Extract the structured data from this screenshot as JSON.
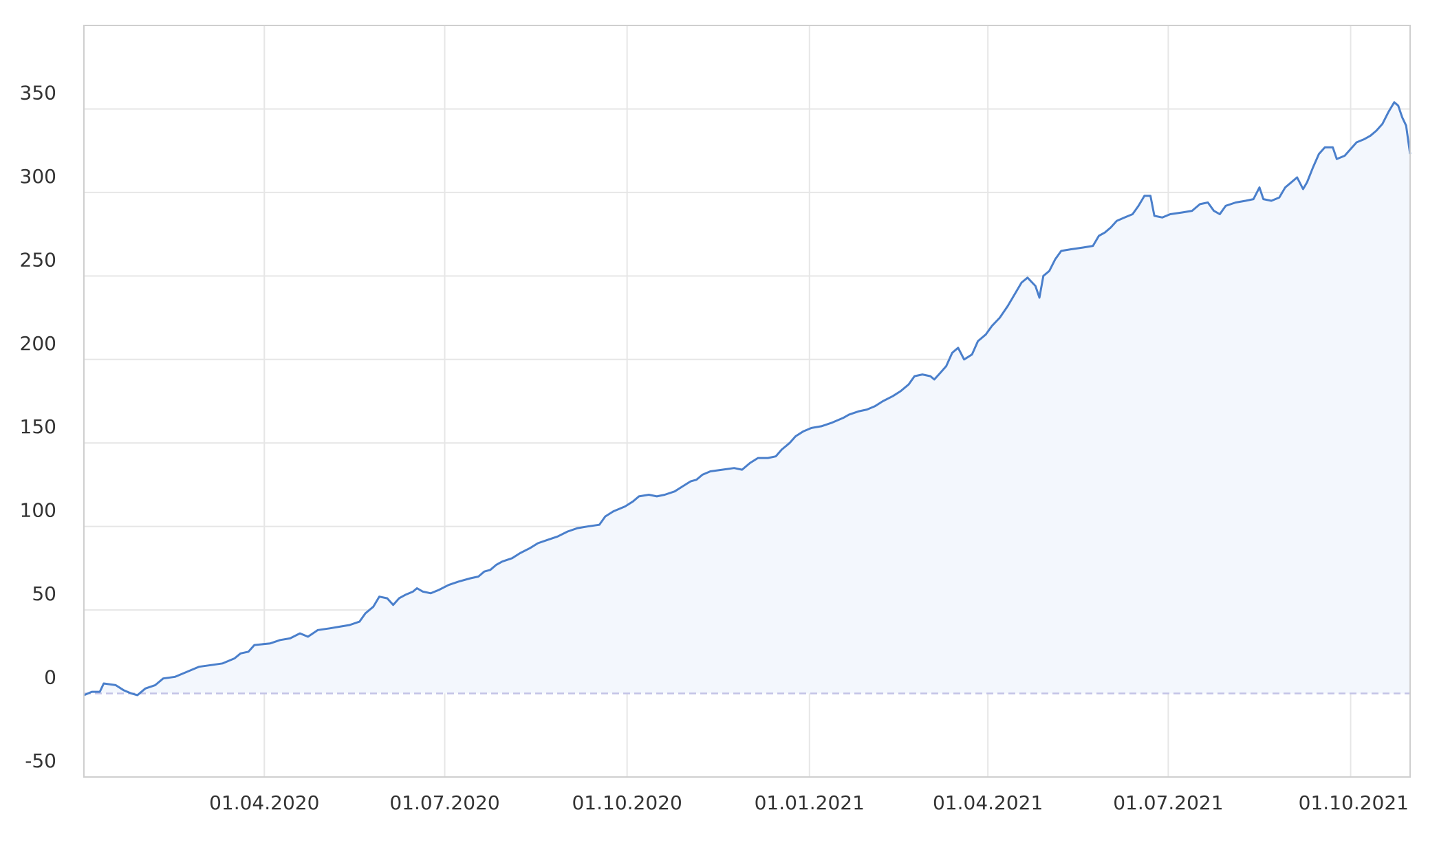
{
  "colors": {
    "line": "#4a7fcb",
    "area": "#f3f7fd",
    "grid": "#e6e6e6",
    "frame": "#cfcfcf",
    "zero_line": "#c3c3e6",
    "tick_text": "#333333"
  },
  "chart_data": {
    "type": "area",
    "title": "",
    "xlabel": "",
    "ylabel": "",
    "x_range": [
      "2020-01-01",
      "2021-10-31"
    ],
    "ylim": [
      -50,
      400
    ],
    "grid": true,
    "zero_baseline": "dashed",
    "y_ticks": [
      -50,
      0,
      50,
      100,
      150,
      200,
      250,
      300,
      350
    ],
    "y_tick_labels": [
      "-50",
      "0",
      "50",
      "100",
      "150",
      "200",
      "250",
      "300",
      "350"
    ],
    "x_ticks": [
      "2020-04-01",
      "2020-07-01",
      "2020-10-01",
      "2021-01-01",
      "2021-04-01",
      "2021-07-01",
      "2021-10-01"
    ],
    "x_tick_labels": [
      "01.04.2020",
      "01.07.2020",
      "01.10.2020",
      "01.01.2021",
      "01.04.2021",
      "01.07.2021",
      "01.10.2021"
    ],
    "series": [
      {
        "points": [
          [
            "2020-01-01",
            -1
          ],
          [
            "2020-01-05",
            1
          ],
          [
            "2020-01-09",
            1
          ],
          [
            "2020-01-11",
            6
          ],
          [
            "2020-01-17",
            5
          ],
          [
            "2020-01-21",
            2
          ],
          [
            "2020-01-25",
            0
          ],
          [
            "2020-01-28",
            -1
          ],
          [
            "2020-02-01",
            3
          ],
          [
            "2020-02-06",
            5
          ],
          [
            "2020-02-10",
            9
          ],
          [
            "2020-02-16",
            10
          ],
          [
            "2020-02-22",
            13
          ],
          [
            "2020-02-28",
            16
          ],
          [
            "2020-03-05",
            17
          ],
          [
            "2020-03-11",
            18
          ],
          [
            "2020-03-17",
            21
          ],
          [
            "2020-03-20",
            24
          ],
          [
            "2020-03-24",
            25
          ],
          [
            "2020-03-27",
            29
          ],
          [
            "2020-04-04",
            30
          ],
          [
            "2020-04-09",
            32
          ],
          [
            "2020-04-14",
            33
          ],
          [
            "2020-04-19",
            36
          ],
          [
            "2020-04-23",
            34
          ],
          [
            "2020-04-28",
            38
          ],
          [
            "2020-05-04",
            39
          ],
          [
            "2020-05-09",
            40
          ],
          [
            "2020-05-14",
            41
          ],
          [
            "2020-05-19",
            43
          ],
          [
            "2020-05-22",
            48
          ],
          [
            "2020-05-26",
            52
          ],
          [
            "2020-05-29",
            58
          ],
          [
            "2020-06-02",
            57
          ],
          [
            "2020-06-05",
            53
          ],
          [
            "2020-06-08",
            57
          ],
          [
            "2020-06-11",
            59
          ],
          [
            "2020-06-15",
            61
          ],
          [
            "2020-06-17",
            63
          ],
          [
            "2020-06-20",
            61
          ],
          [
            "2020-06-24",
            60
          ],
          [
            "2020-06-28",
            62
          ],
          [
            "2020-07-03",
            65
          ],
          [
            "2020-07-08",
            67
          ],
          [
            "2020-07-14",
            69
          ],
          [
            "2020-07-18",
            70
          ],
          [
            "2020-07-21",
            73
          ],
          [
            "2020-07-24",
            74
          ],
          [
            "2020-07-27",
            77
          ],
          [
            "2020-07-30",
            79
          ],
          [
            "2020-08-04",
            81
          ],
          [
            "2020-08-08",
            84
          ],
          [
            "2020-08-13",
            87
          ],
          [
            "2020-08-17",
            90
          ],
          [
            "2020-08-22",
            92
          ],
          [
            "2020-08-27",
            94
          ],
          [
            "2020-09-01",
            97
          ],
          [
            "2020-09-06",
            99
          ],
          [
            "2020-09-11",
            100
          ],
          [
            "2020-09-17",
            101
          ],
          [
            "2020-09-20",
            106
          ],
          [
            "2020-09-24",
            109
          ],
          [
            "2020-09-30",
            112
          ],
          [
            "2020-10-04",
            115
          ],
          [
            "2020-10-07",
            118
          ],
          [
            "2020-10-12",
            119
          ],
          [
            "2020-10-16",
            118
          ],
          [
            "2020-10-20",
            119
          ],
          [
            "2020-10-25",
            121
          ],
          [
            "2020-10-29",
            124
          ],
          [
            "2020-11-02",
            127
          ],
          [
            "2020-11-05",
            128
          ],
          [
            "2020-11-08",
            131
          ],
          [
            "2020-11-12",
            133
          ],
          [
            "2020-11-18",
            134
          ],
          [
            "2020-11-24",
            135
          ],
          [
            "2020-11-28",
            134
          ],
          [
            "2020-12-02",
            138
          ],
          [
            "2020-12-06",
            141
          ],
          [
            "2020-12-11",
            141
          ],
          [
            "2020-12-15",
            142
          ],
          [
            "2020-12-18",
            146
          ],
          [
            "2020-12-22",
            150
          ],
          [
            "2020-12-25",
            154
          ],
          [
            "2020-12-29",
            157
          ],
          [
            "2021-01-02",
            159
          ],
          [
            "2021-01-07",
            160
          ],
          [
            "2021-01-12",
            162
          ],
          [
            "2021-01-18",
            165
          ],
          [
            "2021-01-21",
            167
          ],
          [
            "2021-01-26",
            169
          ],
          [
            "2021-01-30",
            170
          ],
          [
            "2021-02-03",
            172
          ],
          [
            "2021-02-07",
            175
          ],
          [
            "2021-02-12",
            178
          ],
          [
            "2021-02-16",
            181
          ],
          [
            "2021-02-20",
            185
          ],
          [
            "2021-02-23",
            190
          ],
          [
            "2021-02-27",
            191
          ],
          [
            "2021-03-03",
            190
          ],
          [
            "2021-03-05",
            188
          ],
          [
            "2021-03-08",
            192
          ],
          [
            "2021-03-11",
            196
          ],
          [
            "2021-03-14",
            204
          ],
          [
            "2021-03-17",
            207
          ],
          [
            "2021-03-20",
            200
          ],
          [
            "2021-03-24",
            203
          ],
          [
            "2021-03-27",
            211
          ],
          [
            "2021-03-31",
            215
          ],
          [
            "2021-04-03",
            220
          ],
          [
            "2021-04-07",
            225
          ],
          [
            "2021-04-11",
            232
          ],
          [
            "2021-04-15",
            240
          ],
          [
            "2021-04-18",
            246
          ],
          [
            "2021-04-21",
            249
          ],
          [
            "2021-04-25",
            244
          ],
          [
            "2021-04-27",
            237
          ],
          [
            "2021-04-29",
            250
          ],
          [
            "2021-05-02",
            253
          ],
          [
            "2021-05-05",
            260
          ],
          [
            "2021-05-08",
            265
          ],
          [
            "2021-05-13",
            266
          ],
          [
            "2021-05-19",
            267
          ],
          [
            "2021-05-24",
            268
          ],
          [
            "2021-05-27",
            274
          ],
          [
            "2021-05-30",
            276
          ],
          [
            "2021-06-02",
            279
          ],
          [
            "2021-06-05",
            283
          ],
          [
            "2021-06-09",
            285
          ],
          [
            "2021-06-13",
            287
          ],
          [
            "2021-06-16",
            292
          ],
          [
            "2021-06-19",
            298
          ],
          [
            "2021-06-22",
            298
          ],
          [
            "2021-06-24",
            286
          ],
          [
            "2021-06-28",
            285
          ],
          [
            "2021-07-02",
            287
          ],
          [
            "2021-07-08",
            288
          ],
          [
            "2021-07-13",
            289
          ],
          [
            "2021-07-17",
            293
          ],
          [
            "2021-07-21",
            294
          ],
          [
            "2021-07-24",
            289
          ],
          [
            "2021-07-27",
            287
          ],
          [
            "2021-07-30",
            292
          ],
          [
            "2021-08-04",
            294
          ],
          [
            "2021-08-09",
            295
          ],
          [
            "2021-08-13",
            296
          ],
          [
            "2021-08-16",
            303
          ],
          [
            "2021-08-18",
            296
          ],
          [
            "2021-08-22",
            295
          ],
          [
            "2021-08-26",
            297
          ],
          [
            "2021-08-29",
            303
          ],
          [
            "2021-09-01",
            306
          ],
          [
            "2021-09-04",
            309
          ],
          [
            "2021-09-07",
            302
          ],
          [
            "2021-09-09",
            306
          ],
          [
            "2021-09-12",
            315
          ],
          [
            "2021-09-15",
            323
          ],
          [
            "2021-09-18",
            327
          ],
          [
            "2021-09-22",
            327
          ],
          [
            "2021-09-24",
            320
          ],
          [
            "2021-09-28",
            322
          ],
          [
            "2021-10-01",
            326
          ],
          [
            "2021-10-04",
            330
          ],
          [
            "2021-10-08",
            332
          ],
          [
            "2021-10-11",
            334
          ],
          [
            "2021-10-14",
            337
          ],
          [
            "2021-10-17",
            341
          ],
          [
            "2021-10-20",
            348
          ],
          [
            "2021-10-23",
            354
          ],
          [
            "2021-10-25",
            352
          ],
          [
            "2021-10-27",
            345
          ],
          [
            "2021-10-29",
            340
          ],
          [
            "2021-10-31",
            323
          ]
        ]
      }
    ]
  }
}
